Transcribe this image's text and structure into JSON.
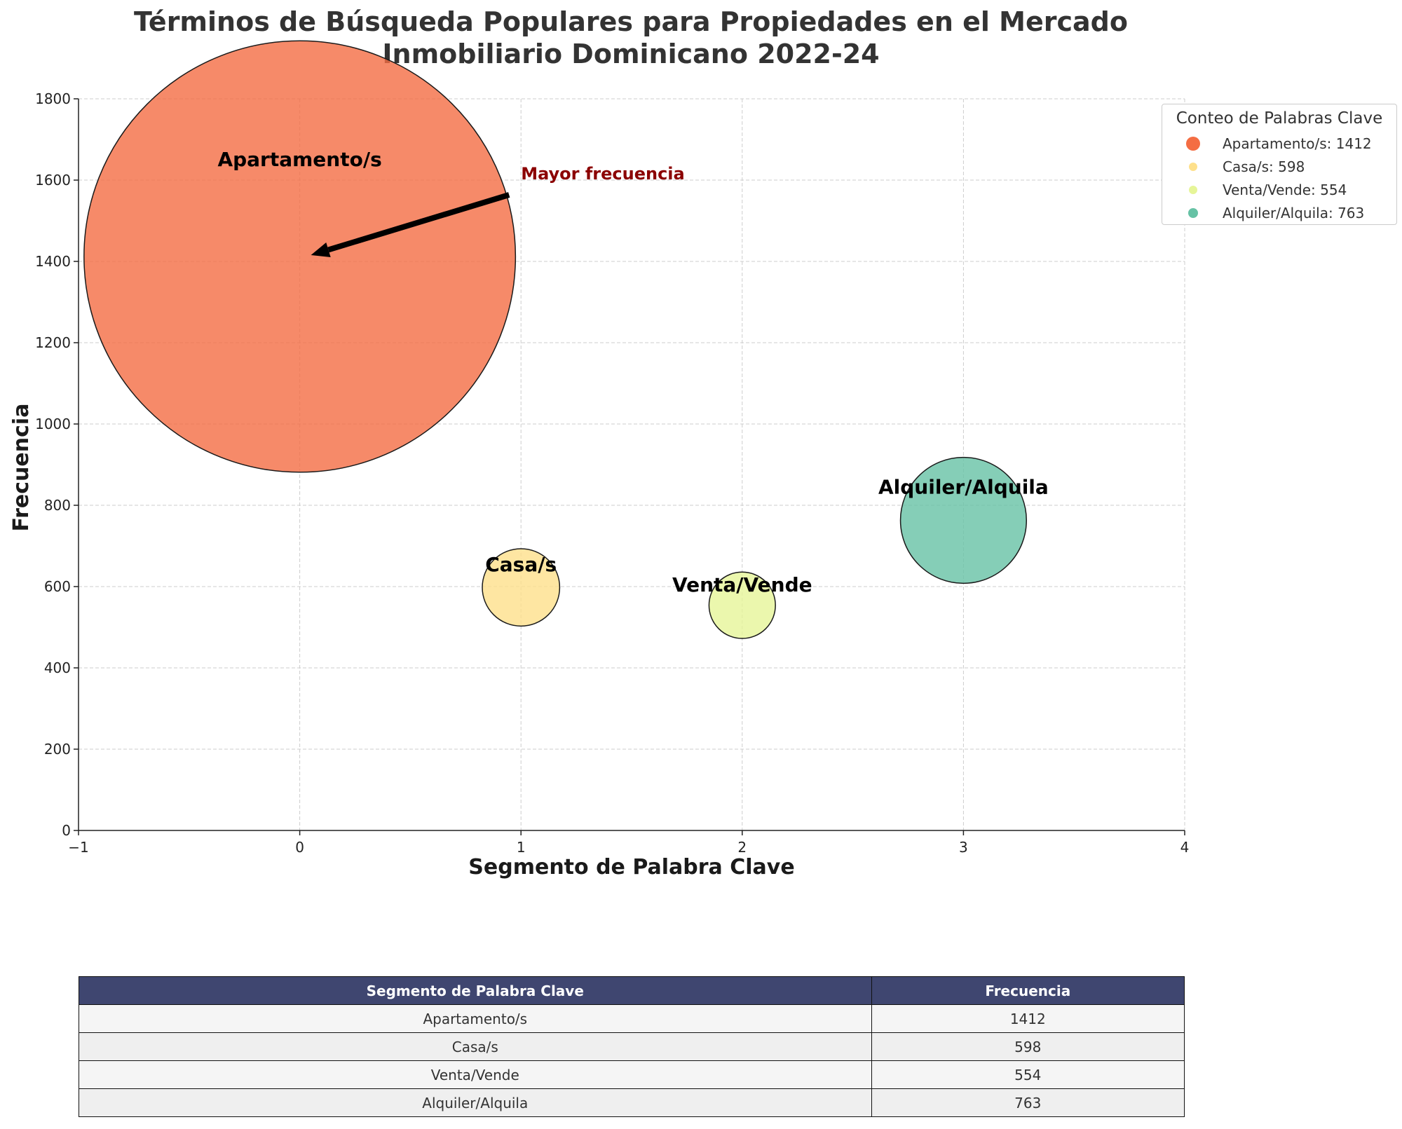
{
  "chart_data": {
    "type": "scatter",
    "title_lines": [
      "Términos de Búsqueda Populares para Propiedades en el Mercado",
      "Inmobiliario Dominicano 2022-24"
    ],
    "xlabel": "Segmento de Palabra Clave",
    "ylabel": "Frecuencia",
    "xlim": [
      -1,
      4
    ],
    "ylim": [
      0,
      1800
    ],
    "xticks": [
      -1,
      0,
      1,
      2,
      3,
      4
    ],
    "xtick_labels": [
      "−1",
      "0",
      "1",
      "2",
      "3",
      "4"
    ],
    "yticks": [
      0,
      200,
      400,
      600,
      800,
      1000,
      1200,
      1400,
      1600,
      1800
    ],
    "grid": true,
    "points": [
      {
        "label": "Apartamento/s",
        "x": 0,
        "y": 1412,
        "color": "#f46d43"
      },
      {
        "label": "Casa/s",
        "x": 1,
        "y": 598,
        "color": "#fee08b"
      },
      {
        "label": "Venta/Vende",
        "x": 2,
        "y": 554,
        "color": "#e6f598"
      },
      {
        "label": "Alquiler/Alquila",
        "x": 3,
        "y": 763,
        "color": "#66c2a5"
      }
    ],
    "annotation": {
      "text": "Mayor frecuencia",
      "text_x": 1,
      "text_y": 1600,
      "target_x": 0,
      "target_y": 1412,
      "color": "#8b0000"
    },
    "legend": {
      "title": "Conteo de Palabras Clave",
      "entries": [
        "Apartamento/s: 1412",
        "Casa/s: 598",
        "Venta/Vende: 554",
        "Alquiler/Alquila: 763"
      ],
      "position": "outside-top-right"
    }
  },
  "table": {
    "headers": [
      "Segmento de Palabra Clave",
      "Frecuencia"
    ],
    "rows": [
      [
        "Apartamento/s",
        "1412"
      ],
      [
        "Casa/s",
        "598"
      ],
      [
        "Venta/Vende",
        "554"
      ],
      [
        "Alquiler/Alquila",
        "763"
      ]
    ],
    "header_color": "#3f4670"
  }
}
